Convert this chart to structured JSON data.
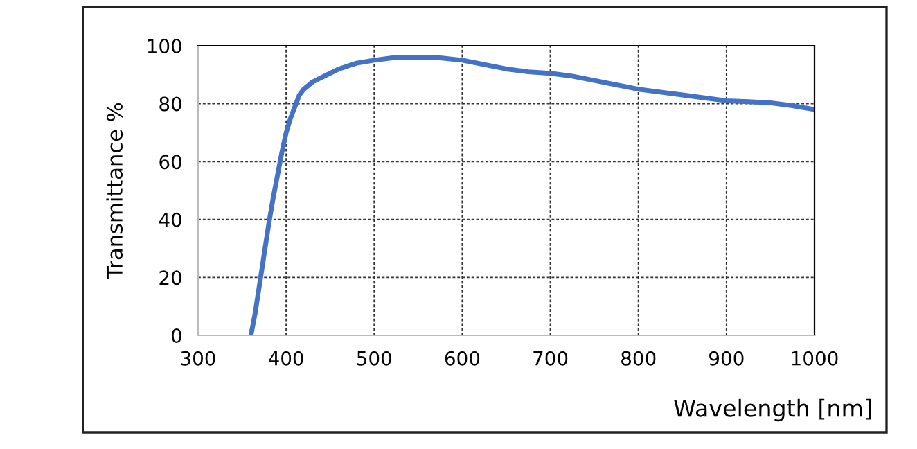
{
  "chart_data": {
    "type": "line",
    "xlabel": "Wavelength [nm]",
    "ylabel": "Transmittance %",
    "x": [
      360,
      365,
      370,
      375,
      380,
      385,
      390,
      395,
      400,
      405,
      410,
      415,
      420,
      430,
      440,
      450,
      460,
      480,
      500,
      525,
      550,
      575,
      600,
      625,
      650,
      675,
      700,
      725,
      750,
      775,
      800,
      825,
      850,
      875,
      900,
      925,
      950,
      975,
      1000
    ],
    "series": [
      {
        "color": "#4472c4",
        "values": [
          0,
          8,
          18,
          28,
          38,
          47,
          55,
          63,
          70,
          75,
          79,
          83,
          85,
          87.5,
          89,
          90.5,
          92,
          94,
          95,
          96,
          96,
          95.8,
          95,
          93.5,
          92,
          91,
          90.5,
          89.5,
          88,
          86.5,
          85,
          84,
          83,
          82,
          81,
          80.7,
          80.3,
          79.3,
          78
        ]
      }
    ],
    "xlim": [
      300,
      1000
    ],
    "ylim": [
      0,
      100
    ],
    "xticks": [
      300,
      400,
      500,
      600,
      700,
      800,
      900,
      1000
    ],
    "yticks": [
      0,
      20,
      40,
      60,
      80,
      100
    ],
    "grid": true,
    "line_style": "solid",
    "marker": "none"
  }
}
